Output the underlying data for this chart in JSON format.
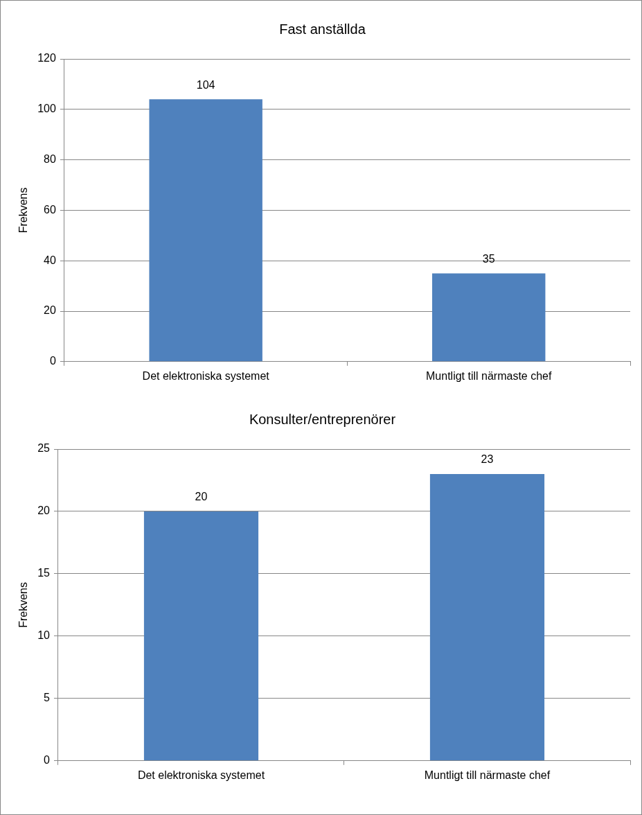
{
  "chart_data": [
    {
      "type": "bar",
      "title": "Fast anställda",
      "ylabel": "Frekvens",
      "categories": [
        "Det elektroniska systemet",
        "Muntligt till närmaste chef"
      ],
      "values": [
        104,
        35
      ],
      "color": "#4f81bd",
      "ylim": [
        0,
        120
      ],
      "yticks": [
        0,
        20,
        40,
        60,
        80,
        100,
        120
      ],
      "grid": "y",
      "data_labels": true
    },
    {
      "type": "bar",
      "title": "Konsulter/entreprenörer",
      "ylabel": "Frekvens",
      "categories": [
        "Det elektroniska systemet",
        "Muntligt till närmaste chef"
      ],
      "values": [
        20,
        23
      ],
      "color": "#4f81bd",
      "ylim": [
        0,
        25
      ],
      "yticks": [
        0,
        5,
        10,
        15,
        20,
        25
      ],
      "grid": "y",
      "data_labels": true
    }
  ]
}
